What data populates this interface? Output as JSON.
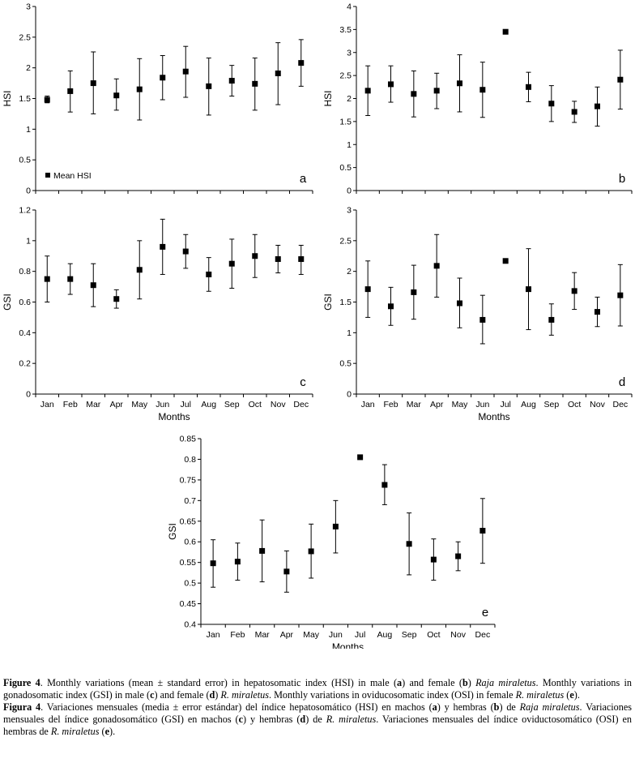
{
  "chart_data": [
    {
      "type": "scatter",
      "panel": "a",
      "ylabel": "HSI",
      "xlabel": "",
      "ylim": [
        0,
        3
      ],
      "yticks": [
        "0",
        "0.5",
        "1",
        "1.5",
        "2",
        "2.5",
        "3"
      ],
      "categories": [
        "Jan",
        "Feb",
        "Mar",
        "Apr",
        "May",
        "Jun",
        "Jul",
        "Aug",
        "Sep",
        "Oct",
        "Nov",
        "Dec"
      ],
      "values": [
        1.48,
        1.62,
        1.75,
        1.55,
        1.65,
        1.84,
        1.94,
        1.7,
        1.79,
        1.74,
        1.91,
        2.08
      ],
      "err_low": [
        1.43,
        1.28,
        1.25,
        1.31,
        1.15,
        1.48,
        1.52,
        1.23,
        1.54,
        1.31,
        1.4,
        1.7
      ],
      "err_high": [
        1.54,
        1.95,
        2.26,
        1.82,
        2.15,
        2.2,
        2.35,
        2.16,
        2.04,
        2.16,
        2.41,
        2.46
      ],
      "legend": "Mean HSI",
      "show_xticklabels": false
    },
    {
      "type": "scatter",
      "panel": "b",
      "ylabel": "HSI",
      "xlabel": "",
      "ylim": [
        0,
        4
      ],
      "yticks": [
        "0",
        "0.5",
        "1",
        "1.5",
        "2",
        "2.5",
        "3",
        "3.5",
        "4"
      ],
      "categories": [
        "Jan",
        "Feb",
        "Mar",
        "Apr",
        "May",
        "Jun",
        "Jul",
        "Aug",
        "Sep",
        "Oct",
        "Nov",
        "Dec"
      ],
      "values": [
        2.17,
        2.31,
        2.1,
        2.17,
        2.33,
        2.19,
        3.45,
        2.25,
        1.89,
        1.71,
        1.83,
        2.41
      ],
      "err_low": [
        1.63,
        1.92,
        1.6,
        1.78,
        1.71,
        1.59,
        null,
        1.93,
        1.5,
        1.48,
        1.4,
        1.77
      ],
      "err_high": [
        2.71,
        2.71,
        2.6,
        2.55,
        2.95,
        2.79,
        null,
        2.57,
        2.28,
        1.94,
        2.25,
        3.05
      ],
      "show_xticklabels": false
    },
    {
      "type": "scatter",
      "panel": "c",
      "ylabel": "GSI",
      "xlabel": "Months",
      "ylim": [
        0,
        1.2
      ],
      "yticks": [
        "0",
        "0.2",
        "0.4",
        "0.6",
        "0.8",
        "1",
        "1.2"
      ],
      "categories": [
        "Jan",
        "Feb",
        "Mar",
        "Apr",
        "May",
        "Jun",
        "Jul",
        "Aug",
        "Sep",
        "Oct",
        "Nov",
        "Dec"
      ],
      "values": [
        0.75,
        0.75,
        0.71,
        0.62,
        0.81,
        0.96,
        0.93,
        0.78,
        0.85,
        0.9,
        0.88,
        0.88
      ],
      "err_low": [
        0.6,
        0.65,
        0.57,
        0.56,
        0.62,
        0.78,
        0.82,
        0.67,
        0.69,
        0.76,
        0.79,
        0.78
      ],
      "err_high": [
        0.9,
        0.85,
        0.85,
        0.68,
        1.0,
        1.14,
        1.04,
        0.89,
        1.01,
        1.04,
        0.97,
        0.97
      ],
      "show_xticklabels": true
    },
    {
      "type": "scatter",
      "panel": "d",
      "ylabel": "GSI",
      "xlabel": "Months",
      "ylim": [
        0,
        3
      ],
      "yticks": [
        "0",
        "0.5",
        "1",
        "1.5",
        "2",
        "2.5",
        "3"
      ],
      "categories": [
        "Jan",
        "Feb",
        "Mar",
        "Apr",
        "May",
        "Jun",
        "Jul",
        "Aug",
        "Sep",
        "Oct",
        "Nov",
        "Dec"
      ],
      "values": [
        1.71,
        1.43,
        1.66,
        2.09,
        1.48,
        1.21,
        2.17,
        1.71,
        1.21,
        1.68,
        1.34,
        1.61
      ],
      "err_low": [
        1.25,
        1.12,
        1.22,
        1.58,
        1.08,
        0.82,
        null,
        1.05,
        0.96,
        1.38,
        1.1,
        1.11
      ],
      "err_high": [
        2.17,
        1.74,
        2.1,
        2.6,
        1.89,
        1.61,
        null,
        2.37,
        1.47,
        1.98,
        1.58,
        2.11
      ],
      "show_xticklabels": true
    },
    {
      "type": "scatter",
      "panel": "e",
      "ylabel": "GSI",
      "xlabel": "Months",
      "ylim": [
        0.4,
        0.85
      ],
      "yticks": [
        "0.4",
        "0.45",
        "0.5",
        "0.55",
        "0.6",
        "0.65",
        "0.7",
        "0.75",
        "0.8",
        "0.85"
      ],
      "categories": [
        "Jan",
        "Feb",
        "Mar",
        "Apr",
        "May",
        "Jun",
        "Jul",
        "Aug",
        "Sep",
        "Oct",
        "Nov",
        "Dec"
      ],
      "values": [
        0.548,
        0.552,
        0.578,
        0.528,
        0.577,
        0.637,
        0.805,
        0.738,
        0.595,
        0.557,
        0.565,
        0.627
      ],
      "err_low": [
        0.49,
        0.507,
        0.503,
        0.478,
        0.512,
        0.573,
        null,
        0.69,
        0.52,
        0.507,
        0.53,
        0.548
      ],
      "err_high": [
        0.605,
        0.597,
        0.653,
        0.578,
        0.643,
        0.7,
        null,
        0.787,
        0.67,
        0.607,
        0.6,
        0.705
      ],
      "show_xticklabels": true
    }
  ],
  "caption": {
    "en": {
      "figure_label": "Figure 4",
      "parts": [
        {
          "t": ". Monthly variations (mean ± standard error) in hepatosomatic index (HSI) in male (",
          "s": "n"
        },
        {
          "t": "a",
          "s": "b"
        },
        {
          "t": ") and female (",
          "s": "n"
        },
        {
          "t": "b",
          "s": "b"
        },
        {
          "t": ") ",
          "s": "n"
        },
        {
          "t": "Raja miraletus",
          "s": "i"
        },
        {
          "t": ". Monthly variations in gonadosomatic index (GSI) in male (",
          "s": "n"
        },
        {
          "t": "c",
          "s": "b"
        },
        {
          "t": ") and female (",
          "s": "n"
        },
        {
          "t": "d",
          "s": "b"
        },
        {
          "t": ") ",
          "s": "n"
        },
        {
          "t": "R. miraletus",
          "s": "i"
        },
        {
          "t": ". Monthly variations in oviducosomatic index (OSI) in female ",
          "s": "n"
        },
        {
          "t": "R. miraletus",
          "s": "i"
        },
        {
          "t": " (",
          "s": "n"
        },
        {
          "t": "e",
          "s": "b"
        },
        {
          "t": ").",
          "s": "n"
        }
      ]
    },
    "es": {
      "figure_label": "Figura 4",
      "parts": [
        {
          "t": ". Variaciones mensuales (media ± error estándar) del índice hepatosomático (HSI) en machos (",
          "s": "n"
        },
        {
          "t": "a",
          "s": "b"
        },
        {
          "t": ") y hembras (",
          "s": "n"
        },
        {
          "t": "b",
          "s": "b"
        },
        {
          "t": ") de ",
          "s": "n"
        },
        {
          "t": "Raja miraletus",
          "s": "i"
        },
        {
          "t": ". Variaciones mensuales del índice gonadosomático (GSI) en machos (",
          "s": "n"
        },
        {
          "t": "c",
          "s": "b"
        },
        {
          "t": ") y hembras (",
          "s": "n"
        },
        {
          "t": "d",
          "s": "b"
        },
        {
          "t": ") de ",
          "s": "n"
        },
        {
          "t": "R. miraletus",
          "s": "i"
        },
        {
          "t": ". Variaciones mensuales del índice oviductosomático (OSI) en hembras de ",
          "s": "n"
        },
        {
          "t": "R. miraletus",
          "s": "i"
        },
        {
          "t": " (",
          "s": "n"
        },
        {
          "t": "e",
          "s": "b"
        },
        {
          "t": ").",
          "s": "n"
        }
      ]
    }
  }
}
